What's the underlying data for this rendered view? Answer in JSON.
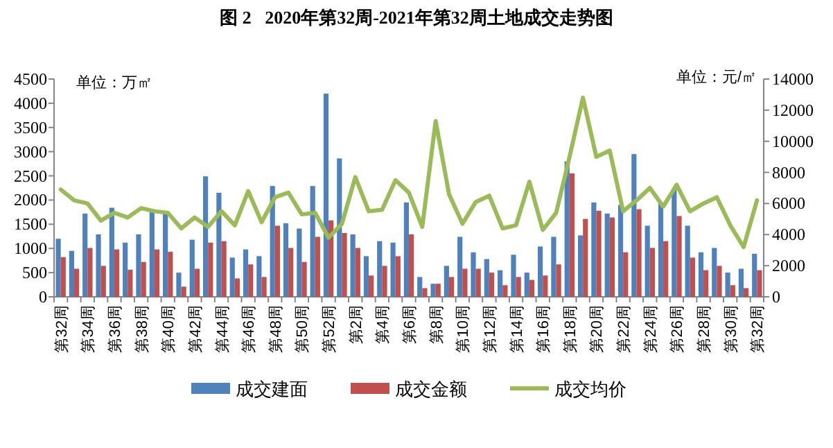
{
  "chart_data": {
    "type": "bar",
    "title": "图 2   2020年第32周-2021年第32周土地成交走势图",
    "categories": [
      "第32周",
      null,
      "第34周",
      null,
      "第36周",
      null,
      "第38周",
      null,
      "第40周",
      null,
      "第42周",
      null,
      "第44周",
      null,
      "第46周",
      null,
      "第48周",
      null,
      "第50周",
      null,
      "第52周",
      null,
      "第2周",
      null,
      "第4周",
      null,
      "第6周",
      null,
      "第8周",
      null,
      "第10周",
      null,
      "第12周",
      null,
      "第14周",
      null,
      "第16周",
      null,
      "第18周",
      null,
      "第20周",
      null,
      "第22周",
      null,
      "第24周",
      null,
      "第26周",
      null,
      "第28周",
      null,
      "第30周",
      null,
      "第32周"
    ],
    "series": [
      {
        "name": "成交建面",
        "color": "#4f81bd",
        "values": [
          1200,
          950,
          1720,
          1290,
          1840,
          1120,
          1290,
          1810,
          1720,
          500,
          1180,
          2490,
          2150,
          810,
          980,
          840,
          2290,
          1520,
          1410,
          2290,
          4200,
          2860,
          1290,
          840,
          1150,
          1120,
          1950,
          410,
          270,
          640,
          1240,
          920,
          780,
          550,
          870,
          500,
          1040,
          1240,
          2800,
          1270,
          1950,
          1720,
          1900,
          2950,
          1470,
          1950,
          2240,
          1470,
          920,
          1010,
          500,
          580,
          890
        ]
      },
      {
        "name": "成交金额",
        "color": "#c0504d",
        "values": [
          820,
          580,
          1010,
          640,
          980,
          560,
          720,
          980,
          930,
          210,
          580,
          1120,
          1150,
          380,
          670,
          410,
          1470,
          1010,
          720,
          1240,
          1580,
          1320,
          1010,
          440,
          640,
          840,
          1290,
          180,
          270,
          410,
          580,
          580,
          500,
          240,
          410,
          350,
          440,
          670,
          2550,
          1610,
          1780,
          1640,
          920,
          1810,
          1010,
          1150,
          1670,
          810,
          550,
          640,
          240,
          180,
          550
        ]
      },
      {
        "name": "成交均价",
        "type": "line",
        "axis": "y2",
        "color": "#9bbb59",
        "values": [
          6900,
          6200,
          6000,
          4900,
          5400,
          5100,
          5700,
          5500,
          5400,
          4400,
          5100,
          4500,
          5500,
          4600,
          6800,
          4800,
          6400,
          6700,
          5300,
          5400,
          3800,
          4700,
          7700,
          5500,
          5600,
          7500,
          6700,
          4500,
          11300,
          6600,
          4700,
          6100,
          6500,
          4400,
          4600,
          7400,
          4300,
          5400,
          9000,
          12800,
          9000,
          9400,
          5500,
          6200,
          7000,
          5800,
          7200,
          5500,
          6000,
          6400,
          4600,
          3200,
          6200
        ]
      }
    ],
    "ylim": [
      0,
      4500
    ],
    "yticks": [
      0,
      500,
      1000,
      1500,
      2000,
      2500,
      3000,
      3500,
      4000,
      4500
    ],
    "y2lim": [
      0,
      14000
    ],
    "y2ticks": [
      0,
      2000,
      4000,
      6000,
      8000,
      10000,
      12000,
      14000
    ],
    "legend": "bottom",
    "grid": false,
    "annotations": [
      "单位：万㎡",
      "单位：元/㎡"
    ]
  }
}
